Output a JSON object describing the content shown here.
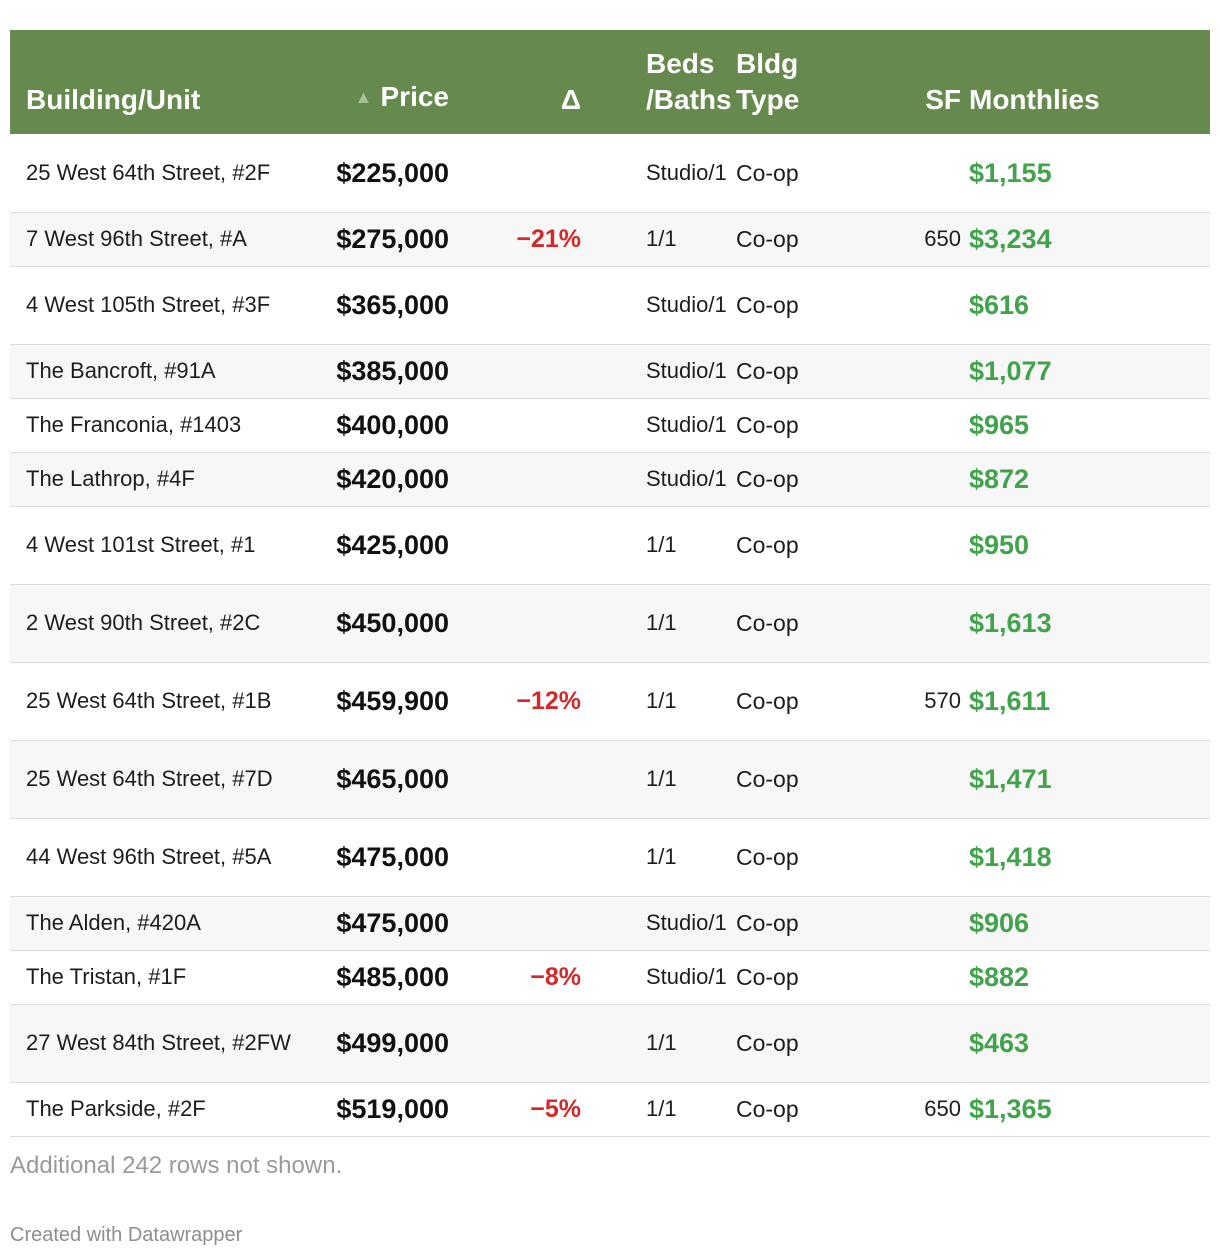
{
  "table": {
    "headers": {
      "building": "Building/Unit",
      "sort_arrow": "▲",
      "price": "Price",
      "delta": "Δ",
      "beds_line1": "Beds",
      "beds_line2": "/Baths",
      "type_line1": "Bldg",
      "type_line2": "Type",
      "sf": "SF",
      "monthlies": "Monthlies"
    },
    "rows": [
      {
        "building": "25 West 64th Street, #2F",
        "price": "$225,000",
        "delta": "",
        "beds": "Studio/1",
        "type": "Co-op",
        "sf": "",
        "monthlies": "$1,155"
      },
      {
        "building": "7 West 96th Street, #A",
        "price": "$275,000",
        "delta": "−21%",
        "beds": "1/1",
        "type": "Co-op",
        "sf": "650",
        "monthlies": "$3,234"
      },
      {
        "building": "4 West 105th Street, #3F",
        "price": "$365,000",
        "delta": "",
        "beds": "Studio/1",
        "type": "Co-op",
        "sf": "",
        "monthlies": "$616"
      },
      {
        "building": "The Bancroft, #91A",
        "price": "$385,000",
        "delta": "",
        "beds": "Studio/1",
        "type": "Co-op",
        "sf": "",
        "monthlies": "$1,077"
      },
      {
        "building": "The Franconia, #1403",
        "price": "$400,000",
        "delta": "",
        "beds": "Studio/1",
        "type": "Co-op",
        "sf": "",
        "monthlies": "$965"
      },
      {
        "building": "The Lathrop, #4F",
        "price": "$420,000",
        "delta": "",
        "beds": "Studio/1",
        "type": "Co-op",
        "sf": "",
        "monthlies": "$872"
      },
      {
        "building": "4 West 101st Street, #1",
        "price": "$425,000",
        "delta": "",
        "beds": "1/1",
        "type": "Co-op",
        "sf": "",
        "monthlies": "$950"
      },
      {
        "building": "2 West 90th Street, #2C",
        "price": "$450,000",
        "delta": "",
        "beds": "1/1",
        "type": "Co-op",
        "sf": "",
        "monthlies": "$1,613"
      },
      {
        "building": "25 West 64th Street, #1B",
        "price": "$459,900",
        "delta": "−12%",
        "beds": "1/1",
        "type": "Co-op",
        "sf": "570",
        "monthlies": "$1,611"
      },
      {
        "building": "25 West 64th Street, #7D",
        "price": "$465,000",
        "delta": "",
        "beds": "1/1",
        "type": "Co-op",
        "sf": "",
        "monthlies": "$1,471"
      },
      {
        "building": "44 West 96th Street, #5A",
        "price": "$475,000",
        "delta": "",
        "beds": "1/1",
        "type": "Co-op",
        "sf": "",
        "monthlies": "$1,418"
      },
      {
        "building": "The Alden, #420A",
        "price": "$475,000",
        "delta": "",
        "beds": "Studio/1",
        "type": "Co-op",
        "sf": "",
        "monthlies": "$906"
      },
      {
        "building": "The Tristan, #1F",
        "price": "$485,000",
        "delta": "−8%",
        "beds": "Studio/1",
        "type": "Co-op",
        "sf": "",
        "monthlies": "$882"
      },
      {
        "building": "27 West 84th Street, #2FW",
        "price": "$499,000",
        "delta": "",
        "beds": "1/1",
        "type": "Co-op",
        "sf": "",
        "monthlies": "$463"
      },
      {
        "building": "The Parkside, #2F",
        "price": "$519,000",
        "delta": "−5%",
        "beds": "1/1",
        "type": "Co-op",
        "sf": "650",
        "monthlies": "$1,365"
      }
    ]
  },
  "footnote": "Additional 242 rows not shown.",
  "credit": "Created with Datawrapper",
  "colors": {
    "header_bg": "#66894d",
    "delta_red": "#d22a2a",
    "monthlies_green": "#43a24c"
  }
}
